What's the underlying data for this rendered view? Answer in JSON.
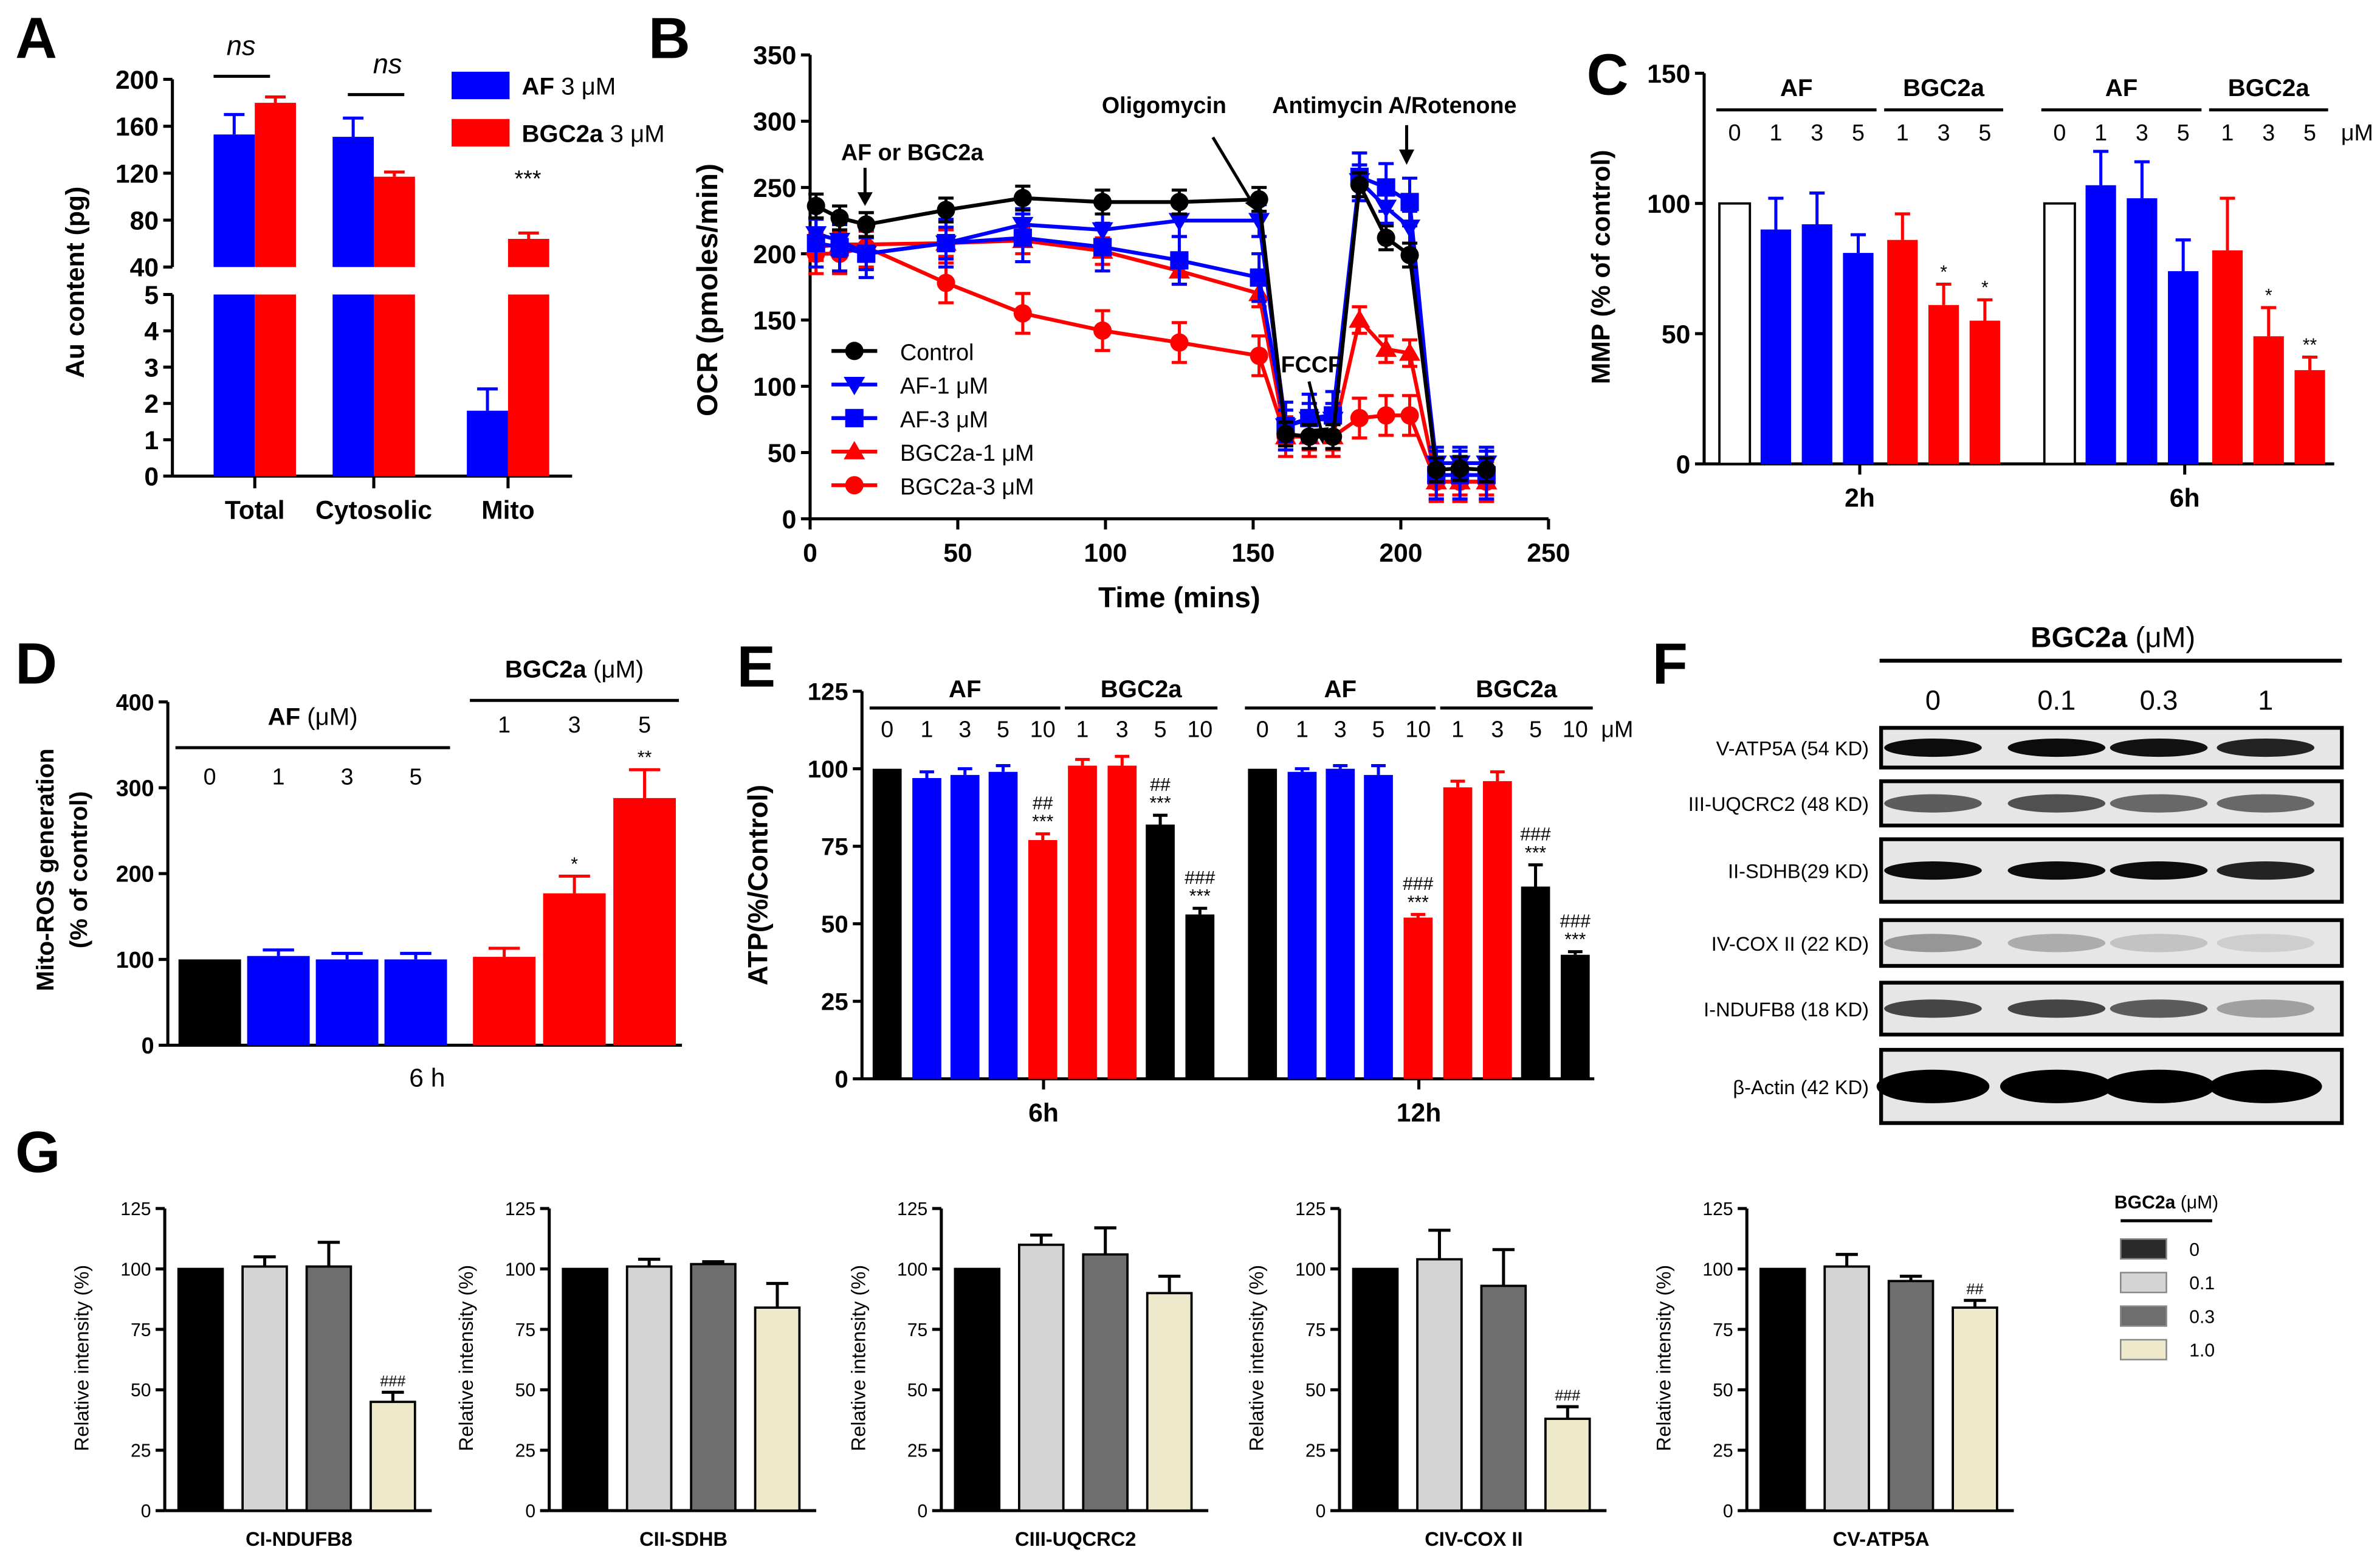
{
  "chart_data": [
    {
      "panel": "A",
      "type": "bar",
      "ylabel": "Au content (pg)",
      "categories": [
        "Total",
        "Cytosolic",
        "Mito"
      ],
      "ylim_upper": [
        40,
        200
      ],
      "ylim_lower": [
        0,
        5
      ],
      "yticks_upper": [
        "40",
        "80",
        "120",
        "160",
        "200"
      ],
      "yticks_lower": [
        "0",
        "1",
        "2",
        "3",
        "4",
        "5"
      ],
      "series": [
        {
          "name": "AF",
          "dose": "3 μM",
          "color": "#0000ff",
          "values": [
            153,
            151,
            1.8
          ],
          "errors": [
            17,
            16,
            0.6
          ]
        },
        {
          "name": "BGC2a",
          "dose": "3 μM",
          "color": "#ff0000",
          "values": [
            180,
            117,
            64
          ],
          "errors": [
            5,
            4,
            5
          ]
        }
      ],
      "annotations": {
        "ns": "ns",
        "mito_sig": "***"
      }
    },
    {
      "panel": "B",
      "type": "line",
      "xlabel": "Time (mins)",
      "ylabel": "OCR (pmoles/min)",
      "xlim": [
        0,
        250
      ],
      "ylim": [
        0,
        350
      ],
      "xticks": [
        "0",
        "50",
        "100",
        "150",
        "200",
        "250"
      ],
      "yticks": [
        "0",
        "50",
        "100",
        "150",
        "200",
        "250",
        "300",
        "350"
      ],
      "x": [
        2,
        10,
        19,
        46,
        72,
        99,
        125,
        152,
        161,
        169,
        177,
        186,
        195,
        203,
        212,
        220,
        229
      ],
      "series": [
        {
          "name": "Control",
          "color": "#000000",
          "marker": "circle",
          "error": 9,
          "values": [
            236,
            227,
            222,
            233,
            242,
            239,
            239,
            241,
            64,
            62,
            62,
            252,
            212,
            199,
            37,
            38,
            37
          ]
        },
        {
          "name": "AF-1 μM",
          "color": "#0000ff",
          "marker": "triangle-down",
          "error": 12,
          "values": [
            215,
            210,
            200,
            208,
            222,
            218,
            225,
            225,
            70,
            75,
            75,
            255,
            235,
            220,
            42,
            42,
            42
          ]
        },
        {
          "name": "AF-3 μM",
          "color": "#0000ff",
          "marker": "square",
          "error": 18,
          "values": [
            208,
            205,
            200,
            208,
            212,
            205,
            195,
            182,
            70,
            76,
            78,
            258,
            250,
            239,
            33,
            33,
            33
          ]
        },
        {
          "name": "BGC2a-1 μM",
          "color": "#ff0000",
          "marker": "triangle-up",
          "error": 10,
          "values": [
            205,
            207,
            207,
            208,
            210,
            202,
            187,
            170,
            62,
            62,
            62,
            150,
            128,
            125,
            28,
            28,
            28
          ]
        },
        {
          "name": "BGC2a-3 μM",
          "color": "#ff0000",
          "marker": "circle",
          "error": 15,
          "values": [
            200,
            200,
            205,
            178,
            155,
            142,
            133,
            123,
            62,
            62,
            62,
            76,
            78,
            78,
            28,
            28,
            28
          ]
        }
      ],
      "annotations": [
        "AF or BGC2a",
        "Oligomycin",
        "Antimycin A/Rotenone",
        "FCCP"
      ]
    },
    {
      "panel": "C",
      "type": "bar",
      "ylabel": "MMP (% of control)",
      "ylim": [
        0,
        150
      ],
      "yticks": [
        "0",
        "50",
        "100",
        "150"
      ],
      "unit": "μM",
      "headers": [
        {
          "label": "AF",
          "doses": [
            "0",
            "1",
            "3",
            "5"
          ]
        },
        {
          "label": "BGC2a",
          "doses": [
            "1",
            "3",
            "5"
          ]
        }
      ],
      "groups": [
        {
          "label": "2h",
          "bars": [
            {
              "value": 100,
              "error": 0,
              "color": "#ffffff",
              "sig": ""
            },
            {
              "value": 90,
              "error": 12,
              "color": "#0000ff",
              "sig": ""
            },
            {
              "value": 92,
              "error": 12,
              "color": "#0000ff",
              "sig": ""
            },
            {
              "value": 81,
              "error": 7,
              "color": "#0000ff",
              "sig": ""
            },
            {
              "value": 86,
              "error": 10,
              "color": "#ff0000",
              "sig": ""
            },
            {
              "value": 61,
              "error": 8,
              "color": "#ff0000",
              "sig": "*"
            },
            {
              "value": 55,
              "error": 8,
              "color": "#ff0000",
              "sig": "*"
            }
          ]
        },
        {
          "label": "6h",
          "bars": [
            {
              "value": 100,
              "error": 0,
              "color": "#ffffff",
              "sig": ""
            },
            {
              "value": 107,
              "error": 13,
              "color": "#0000ff",
              "sig": ""
            },
            {
              "value": 102,
              "error": 14,
              "color": "#0000ff",
              "sig": ""
            },
            {
              "value": 74,
              "error": 12,
              "color": "#0000ff",
              "sig": ""
            },
            {
              "value": 82,
              "error": 20,
              "color": "#ff0000",
              "sig": ""
            },
            {
              "value": 49,
              "error": 11,
              "color": "#ff0000",
              "sig": "*"
            },
            {
              "value": 36,
              "error": 5,
              "color": "#ff0000",
              "sig": "**"
            }
          ]
        }
      ]
    },
    {
      "panel": "D",
      "type": "bar",
      "ylabel": [
        "Mito-ROS generation",
        "(% of control)"
      ],
      "ylim": [
        0,
        400
      ],
      "yticks": [
        "0",
        "100",
        "200",
        "300",
        "400"
      ],
      "headers": [
        {
          "label": "AF",
          "unit": "(μM)",
          "doses": [
            "0",
            "1",
            "3",
            "5"
          ]
        },
        {
          "label": "BGC2a",
          "unit": "(μM)",
          "doses": [
            "1",
            "3",
            "5"
          ]
        }
      ],
      "groups": [
        {
          "label": "6 h",
          "bars": [
            {
              "value": 100,
              "error": 0,
              "color": "#000000",
              "sig": ""
            },
            {
              "value": 104,
              "error": 7,
              "color": "#0000ff",
              "sig": ""
            },
            {
              "value": 100,
              "error": 7,
              "color": "#0000ff",
              "sig": ""
            },
            {
              "value": 100,
              "error": 7,
              "color": "#0000ff",
              "sig": ""
            },
            {
              "value": 103,
              "error": 10,
              "color": "#ff0000",
              "sig": ""
            },
            {
              "value": 177,
              "error": 20,
              "color": "#ff0000",
              "sig": "*"
            },
            {
              "value": 288,
              "error": 33,
              "color": "#ff0000",
              "sig": "**"
            }
          ]
        }
      ]
    },
    {
      "panel": "E",
      "type": "bar",
      "ylabel": "ATP(%/Control)",
      "ylim": [
        0,
        125
      ],
      "yticks": [
        "0",
        "25",
        "50",
        "75",
        "100",
        "125"
      ],
      "unit": "μM",
      "headers": [
        {
          "label": "AF",
          "doses": [
            "0",
            "1",
            "3",
            "5",
            "10"
          ]
        },
        {
          "label": "BGC2a",
          "doses": [
            "1",
            "3",
            "5",
            "10"
          ]
        }
      ],
      "groups": [
        {
          "label": "6h",
          "bars": [
            {
              "value": 100,
              "error": 0,
              "color": "#000000",
              "sig": []
            },
            {
              "value": 97,
              "error": 2,
              "color": "#0000ff",
              "sig": []
            },
            {
              "value": 98,
              "error": 2,
              "color": "#0000ff",
              "sig": []
            },
            {
              "value": 99,
              "error": 2,
              "color": "#0000ff",
              "sig": []
            },
            {
              "value": 77,
              "error": 2,
              "color": "#ff0000",
              "sig": [
                "##",
                "***"
              ]
            },
            {
              "value": 101,
              "error": 2,
              "color": "#ff0000",
              "sig": []
            },
            {
              "value": 101,
              "error": 3,
              "color": "#ff0000",
              "sig": []
            },
            {
              "value": 82,
              "error": 3,
              "color": "#000000",
              "sig": [
                "##",
                "***"
              ]
            },
            {
              "value": 53,
              "error": 2,
              "color": "#000000",
              "sig": [
                "###",
                "***"
              ]
            }
          ]
        },
        {
          "label": "12h",
          "bars": [
            {
              "value": 100,
              "error": 0,
              "color": "#000000",
              "sig": []
            },
            {
              "value": 99,
              "error": 1,
              "color": "#0000ff",
              "sig": []
            },
            {
              "value": 100,
              "error": 1,
              "color": "#0000ff",
              "sig": []
            },
            {
              "value": 98,
              "error": 3,
              "color": "#0000ff",
              "sig": []
            },
            {
              "value": 52,
              "error": 1,
              "color": "#ff0000",
              "sig": [
                "###",
                "***"
              ]
            },
            {
              "value": 94,
              "error": 2,
              "color": "#ff0000",
              "sig": []
            },
            {
              "value": 96,
              "error": 3,
              "color": "#ff0000",
              "sig": []
            },
            {
              "value": 62,
              "error": 7,
              "color": "#000000",
              "sig": [
                "###",
                "***"
              ]
            },
            {
              "value": 40,
              "error": 1,
              "color": "#000000",
              "sig": [
                "###",
                "***"
              ]
            }
          ]
        }
      ]
    },
    {
      "panel": "F",
      "type": "blot",
      "title": "BGC2a",
      "unit": "(μM)",
      "lanes": [
        "0",
        "0.1",
        "0.3",
        "1"
      ],
      "rows": [
        {
          "label": "V-ATP5A (54 KD)",
          "intensity": [
            0.95,
            0.95,
            0.92,
            0.85
          ]
        },
        {
          "label": "III-UQCRC2 (48 KD)",
          "intensity": [
            0.6,
            0.65,
            0.55,
            0.55
          ]
        },
        {
          "label": "II-SDHB(29 KD)",
          "intensity": [
            0.95,
            0.95,
            0.95,
            0.85
          ]
        },
        {
          "label": "IV-COX II (22 KD)",
          "intensity": [
            0.35,
            0.25,
            0.15,
            0.1
          ]
        },
        {
          "label": "I-NDUFB8 (18 KD)",
          "intensity": [
            0.7,
            0.7,
            0.6,
            0.3
          ]
        },
        {
          "label": "β-Actin (42 KD)",
          "intensity": [
            1,
            1,
            1,
            1
          ]
        }
      ]
    },
    {
      "panel": "G",
      "type": "bar",
      "ylabel": "Relative intensity (%)",
      "ylim": [
        0,
        125
      ],
      "yticks": [
        "0",
        "25",
        "50",
        "75",
        "100",
        "125"
      ],
      "legend": {
        "title": "BGC2a",
        "unit": "(μM)",
        "items": [
          {
            "label": "0",
            "color": "#2b2b2b"
          },
          {
            "label": "0.1",
            "color": "#d4d4d4"
          },
          {
            "label": "0.3",
            "color": "#6e6e6e"
          },
          {
            "label": "1.0",
            "color": "#efe9cb"
          }
        ]
      },
      "bar_colors": [
        "#000000",
        "#d4d4d4",
        "#6e6e6e",
        "#efe9cb"
      ],
      "charts": [
        {
          "xlabel": "CI-NDUFB8",
          "values": [
            100,
            101,
            101,
            45
          ],
          "errors": [
            0,
            4,
            10,
            4
          ],
          "sig": [
            "",
            "",
            "",
            "###"
          ]
        },
        {
          "xlabel": "CII-SDHB",
          "values": [
            100,
            101,
            102,
            84
          ],
          "errors": [
            0,
            3,
            1,
            10
          ],
          "sig": [
            "",
            "",
            "",
            ""
          ]
        },
        {
          "xlabel": "CIII-UQCRC2",
          "values": [
            100,
            110,
            106,
            90
          ],
          "errors": [
            0,
            4,
            11,
            7
          ],
          "sig": [
            "",
            "",
            "",
            ""
          ]
        },
        {
          "xlabel": "CIV-COX II",
          "values": [
            100,
            104,
            93,
            38
          ],
          "errors": [
            0,
            12,
            15,
            5
          ],
          "sig": [
            "",
            "",
            "",
            "###"
          ]
        },
        {
          "xlabel": "CV-ATP5A",
          "values": [
            100,
            101,
            95,
            84
          ],
          "errors": [
            0,
            5,
            2,
            3
          ],
          "sig": [
            "",
            "",
            "",
            "##"
          ]
        }
      ]
    }
  ],
  "panel_labels": [
    "A",
    "B",
    "C",
    "D",
    "E",
    "F",
    "G"
  ]
}
